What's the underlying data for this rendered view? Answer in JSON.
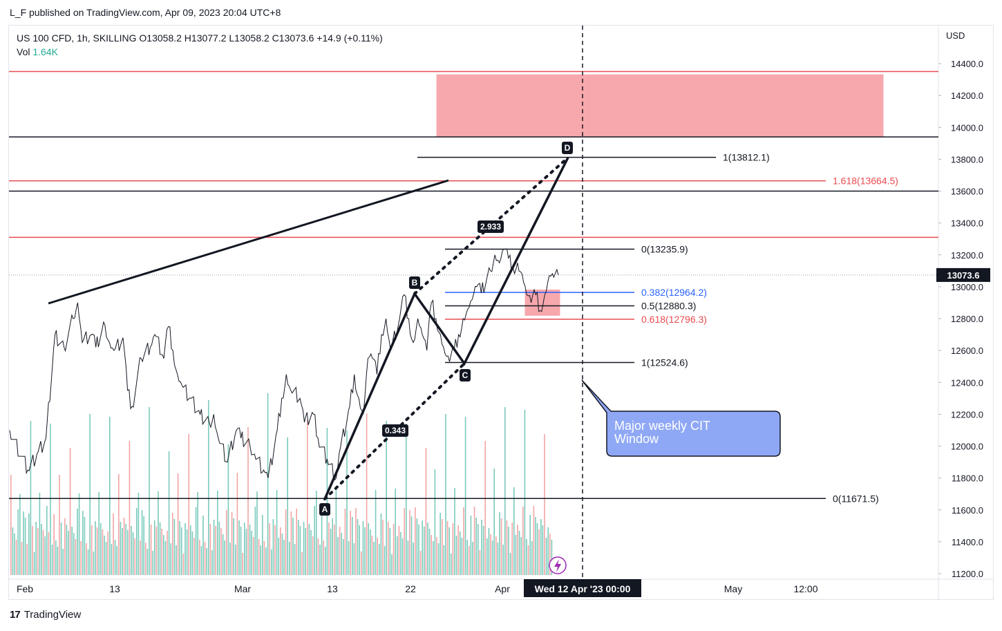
{
  "header": {
    "publish_line": "L_F published on TradingView.com, Apr 09, 2023 20:04 UTC+8"
  },
  "legend": {
    "symbol_line": "US 100 CFD, 1h, SKILLING  O13058.2  H13077.2  L13058.2  C13073.6  +14.9 (+0.11%)",
    "vol_label": "Vol",
    "vol_value": "1.64K"
  },
  "footer": {
    "logo_text": "TradingView",
    "logo_mark": "17"
  },
  "colors": {
    "red": "#e84a4f",
    "blue": "#2962ff",
    "zone": "#f7a8ad",
    "callout": "#8fa8f5",
    "volume_up": "#6cc4b4",
    "volume_down": "#f19a9a"
  },
  "chart_data": {
    "type": "line",
    "title": "US 100 CFD, 1h, SKILLING",
    "currency": "USD",
    "last_price": "13073.6",
    "ylim": [
      11200,
      14500
    ],
    "y_ticks": [
      "14400.0",
      "14200.0",
      "14000.0",
      "13800.0",
      "13600.0",
      "13400.0",
      "13200.0",
      "13000.0",
      "12800.0",
      "12600.0",
      "12400.0",
      "12200.0",
      "12000.0",
      "11800.0",
      "11600.0",
      "11400.0",
      "11200.0"
    ],
    "x_ticks": [
      "Feb",
      "13",
      "Mar",
      "13",
      "22",
      "Apr",
      "May",
      "12:00"
    ],
    "crosshair_date_label": "Wed 12 Apr '23   00:00",
    "price_path": [
      [
        0,
        12100
      ],
      [
        4,
        11850
      ],
      [
        6,
        11950
      ],
      [
        8,
        12050
      ],
      [
        10,
        12700
      ],
      [
        12,
        12620
      ],
      [
        14,
        12800
      ],
      [
        15,
        12900
      ],
      [
        16,
        12650
      ],
      [
        18,
        12700
      ],
      [
        19,
        12620
      ],
      [
        21,
        12760
      ],
      [
        22,
        12650
      ],
      [
        23,
        12600
      ],
      [
        25,
        12680
      ],
      [
        26,
        12350
      ],
      [
        27,
        12250
      ],
      [
        29,
        12550
      ],
      [
        31,
        12620
      ],
      [
        32,
        12700
      ],
      [
        34,
        12550
      ],
      [
        35,
        12750
      ],
      [
        36,
        12600
      ],
      [
        37,
        12450
      ],
      [
        38,
        12380
      ],
      [
        40,
        12300
      ],
      [
        42,
        12200
      ],
      [
        44,
        12150
      ],
      [
        45,
        12200
      ],
      [
        46,
        12050
      ],
      [
        48,
        11900
      ],
      [
        50,
        12100
      ],
      [
        51,
        12050
      ],
      [
        53,
        12000
      ],
      [
        54,
        11950
      ],
      [
        56,
        11850
      ],
      [
        57,
        11800
      ],
      [
        59,
        12100
      ],
      [
        60,
        12300
      ],
      [
        61,
        12450
      ],
      [
        62,
        12350
      ],
      [
        64,
        12300
      ],
      [
        65,
        12150
      ],
      [
        67,
        12200
      ],
      [
        68,
        12050
      ],
      [
        70,
        11920
      ],
      [
        72,
        11800
      ],
      [
        73,
        12000
      ],
      [
        75,
        12250
      ],
      [
        76,
        12450
      ],
      [
        77,
        12300
      ],
      [
        78,
        12200
      ],
      [
        79,
        12550
      ],
      [
        80,
        12550
      ],
      [
        81,
        12450
      ],
      [
        82,
        12700
      ],
      [
        83,
        12800
      ],
      [
        84,
        12600
      ],
      [
        86,
        12800
      ],
      [
        87,
        12950
      ],
      [
        88,
        12800
      ],
      [
        89,
        12650
      ],
      [
        90,
        12800
      ],
      [
        91,
        12700
      ],
      [
        92,
        12600
      ],
      [
        93,
        12900
      ],
      [
        94,
        12800
      ],
      [
        95,
        12700
      ],
      [
        96,
        12580
      ],
      [
        97,
        12530
      ],
      [
        98,
        12600
      ],
      [
        99,
        12700
      ],
      [
        100,
        12800
      ],
      [
        101,
        12860
      ],
      [
        102,
        12920
      ],
      [
        103,
        13000
      ],
      [
        104,
        12960
      ],
      [
        106,
        13100
      ],
      [
        107,
        13200
      ],
      [
        108,
        13150
      ],
      [
        109,
        13236
      ],
      [
        110,
        13180
      ],
      [
        111,
        13120
      ],
      [
        112,
        13150
      ],
      [
        113,
        13080
      ],
      [
        114,
        12950
      ],
      [
        115,
        12900
      ],
      [
        116,
        12950
      ],
      [
        117,
        12850
      ],
      [
        118,
        12950
      ],
      [
        119,
        13070
      ],
      [
        120,
        13060
      ],
      [
        121,
        13073.6
      ]
    ],
    "pattern_points": [
      {
        "label": "A",
        "value": 11671.5
      },
      {
        "label": "B",
        "value": 12964
      },
      {
        "label": "C",
        "value": 12524.6
      },
      {
        "label": "D",
        "value": 13812.1
      }
    ],
    "pattern_ratios": [
      "0.343",
      "2.933"
    ],
    "fib_levels": [
      {
        "label": "1(13812.1)",
        "value": 13812.1,
        "color": "#131722"
      },
      {
        "label": "1.618(13664.5)",
        "value": 13664.5,
        "color": "#e84a4f"
      },
      {
        "label": "0(13235.9)",
        "value": 13235.9,
        "color": "#131722"
      },
      {
        "label": "0.382(12964.2)",
        "value": 12964.2,
        "color": "#2962ff"
      },
      {
        "label": "0.5(12880.3)",
        "value": 12880.3,
        "color": "#131722"
      },
      {
        "label": "0.618(12796.3)",
        "value": 12796.3,
        "color": "#e84a4f"
      },
      {
        "label": "1(12524.6)",
        "value": 12524.6,
        "color": "#131722"
      },
      {
        "label": "0(11671.5)",
        "value": 11671.5,
        "color": "#131722"
      }
    ],
    "horizontal_lines": [
      {
        "value": 14350,
        "color": "#e84a4f"
      },
      {
        "value": 13940,
        "color": "#131722"
      },
      {
        "value": 13600,
        "color": "#131722"
      },
      {
        "value": 13310,
        "color": "#e84a4f"
      }
    ],
    "zones": [
      {
        "name": "target-zone",
        "from": 13940,
        "to": 14330
      },
      {
        "name": "pullback-zone",
        "from": 12820,
        "to": 12980
      }
    ],
    "annotation": "Major weekly CIT\nWindow"
  }
}
